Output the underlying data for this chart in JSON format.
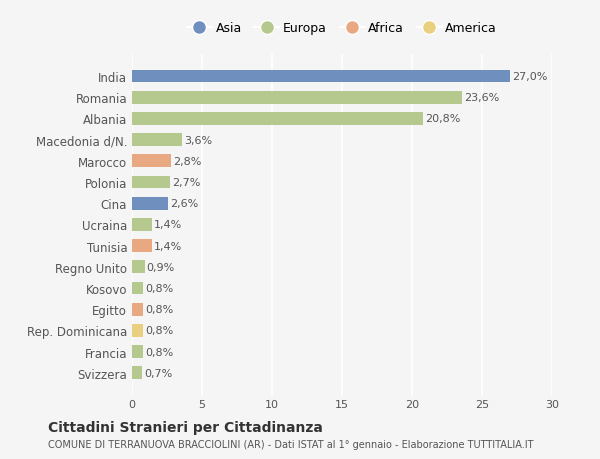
{
  "countries": [
    "India",
    "Romania",
    "Albania",
    "Macedonia d/N.",
    "Marocco",
    "Polonia",
    "Cina",
    "Ucraina",
    "Tunisia",
    "Regno Unito",
    "Kosovo",
    "Egitto",
    "Rep. Dominicana",
    "Francia",
    "Svizzera"
  ],
  "values": [
    27.0,
    23.6,
    20.8,
    3.6,
    2.8,
    2.7,
    2.6,
    1.4,
    1.4,
    0.9,
    0.8,
    0.8,
    0.8,
    0.8,
    0.7
  ],
  "labels": [
    "27,0%",
    "23,6%",
    "20,8%",
    "3,6%",
    "2,8%",
    "2,7%",
    "2,6%",
    "1,4%",
    "1,4%",
    "0,9%",
    "0,8%",
    "0,8%",
    "0,8%",
    "0,8%",
    "0,7%"
  ],
  "continents": [
    "Asia",
    "Europa",
    "Europa",
    "Europa",
    "Africa",
    "Europa",
    "Asia",
    "Europa",
    "Africa",
    "Europa",
    "Europa",
    "Africa",
    "America",
    "Europa",
    "Europa"
  ],
  "colors": {
    "Asia": "#6f8fbf",
    "Europa": "#b5c98e",
    "Africa": "#e8a882",
    "America": "#e8d080"
  },
  "legend_order": [
    "Asia",
    "Europa",
    "Africa",
    "America"
  ],
  "xlim": [
    0,
    30
  ],
  "xticks": [
    0,
    5,
    10,
    15,
    20,
    25,
    30
  ],
  "title": "Cittadini Stranieri per Cittadinanza",
  "subtitle": "COMUNE DI TERRANUOVA BRACCIOLINI (AR) - Dati ISTAT al 1° gennaio - Elaborazione TUTTITALIA.IT",
  "bg_color": "#f5f5f5",
  "bar_height": 0.6,
  "grid_color": "#ffffff",
  "text_color": "#555555"
}
